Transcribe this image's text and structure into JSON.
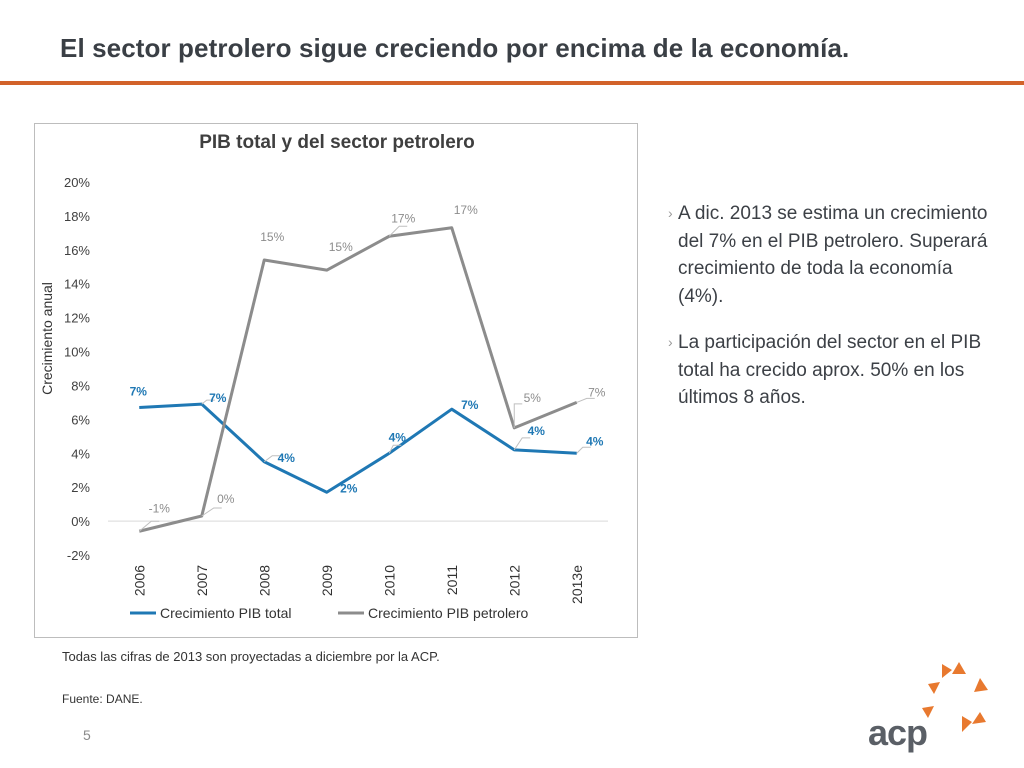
{
  "page": {
    "title": "El sector petrolero sigue creciendo por encima de la economía.",
    "note": "Todas las cifras de 2013 son proyectadas a diciembre por la ACP.",
    "source": "Fuente: DANE.",
    "page_number": "5",
    "logo_text": "acp"
  },
  "bullets": {
    "marker": "›",
    "items": [
      "A dic. 2013 se estima un crecimiento del 7% en el PIB petrolero. Superará crecimiento de toda la economía (4%).",
      "La participación del sector en el PIB total ha crecido aprox. 50% en los últimos 8 años."
    ]
  },
  "colors": {
    "accent": "#d2622a",
    "series_total": "#1f78b4",
    "series_petro": "#8c8c8c"
  },
  "chart_data": {
    "type": "line",
    "title": "PIB total y del sector petrolero",
    "xlabel": "",
    "ylabel": "Crecimiento anual",
    "categories": [
      "2006",
      "2007",
      "2008",
      "2009",
      "2010",
      "2011",
      "2012",
      "2013e"
    ],
    "ylim": [
      -0.02,
      0.2
    ],
    "yticks": [
      "-2%",
      "0%",
      "2%",
      "4%",
      "6%",
      "8%",
      "10%",
      "12%",
      "14%",
      "16%",
      "18%",
      "20%"
    ],
    "series": [
      {
        "name": "Crecimiento PIB total",
        "color": "#1f78b4",
        "values": [
          0.067,
          0.069,
          0.035,
          0.017,
          0.04,
          0.066,
          0.042,
          0.04
        ],
        "labels": [
          "7%",
          "7%",
          "4%",
          "2%",
          "4%",
          "7%",
          "4%",
          "4%"
        ]
      },
      {
        "name": "Crecimiento PIB petrolero",
        "color": "#8c8c8c",
        "values": [
          -0.006,
          0.003,
          0.154,
          0.148,
          0.168,
          0.173,
          0.055,
          0.07
        ],
        "labels": [
          "-1%",
          "0%",
          "15%",
          "15%",
          "17%",
          "17%",
          "5%",
          "7%"
        ]
      }
    ],
    "legend": "bottom"
  }
}
